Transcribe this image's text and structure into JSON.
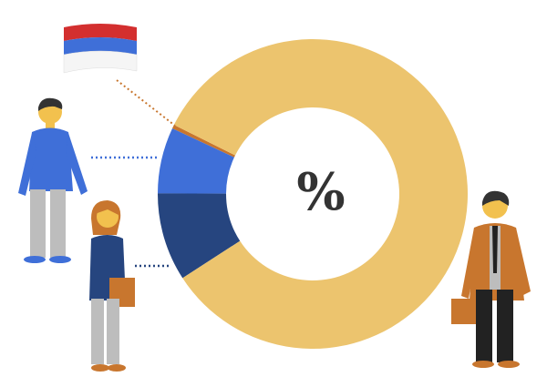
{
  "chart_data": {
    "type": "pie",
    "donut": true,
    "center_label": "%",
    "values": [
      0.4,
      6.9,
      9.2,
      83.5
    ],
    "colors": [
      "#C8762E",
      "#3F6FD8",
      "#26457F",
      "#ECC46E"
    ],
    "legend": "none",
    "annotations": [
      "serbian-flag-icon",
      "man-blue-sweater-icon",
      "woman-dark-blue-sweater-icon",
      "businessman-icon"
    ]
  }
}
